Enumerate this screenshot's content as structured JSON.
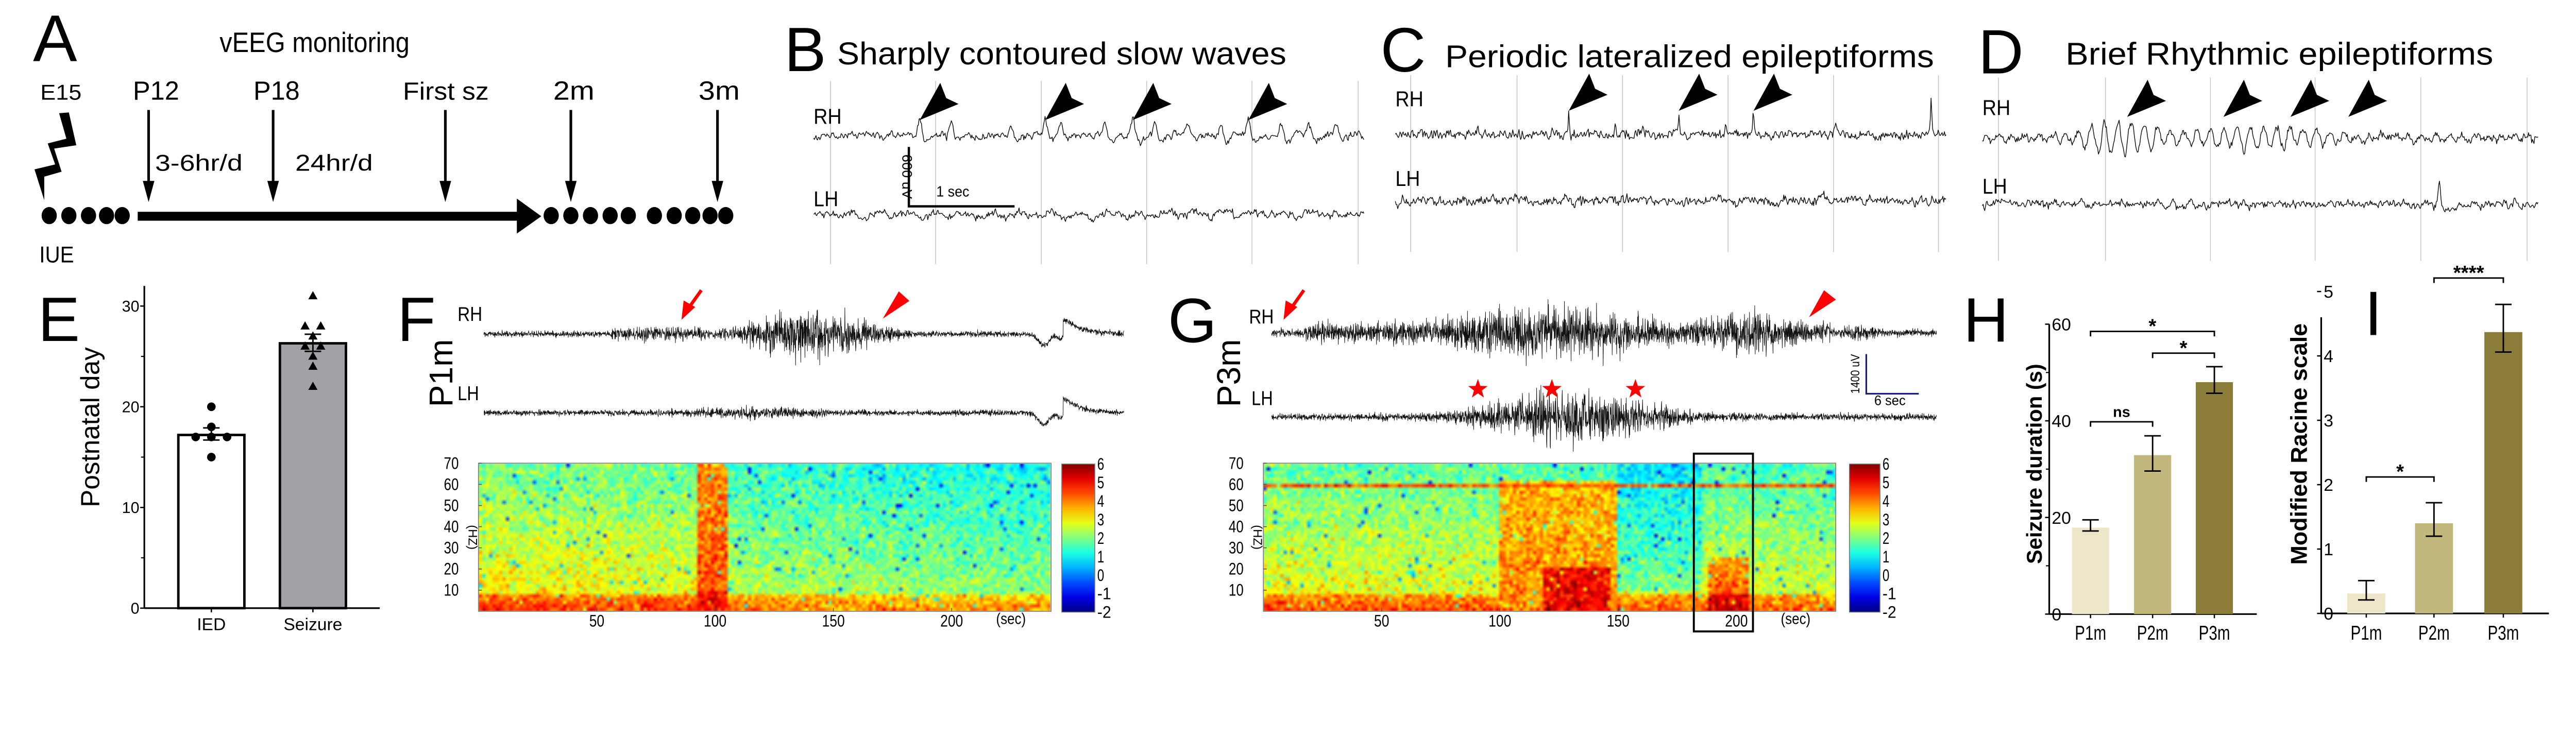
{
  "figure": {
    "A": {
      "label": "A",
      "title": "vEEG monitoring",
      "timepoints": [
        "E15",
        "P12",
        "P18",
        "First sz",
        "2m",
        "3m"
      ],
      "periods": [
        "3-6hr/d",
        "24hr/d"
      ],
      "procedure": "IUE",
      "icons": {
        "electroporation": "lightning-bolt-icon",
        "timeline": "timeline-arrow-icon"
      }
    },
    "B": {
      "label": "B",
      "title": "Sharply contoured slow waves",
      "channels": [
        "RH",
        "LH"
      ],
      "scale_bar": {
        "voltage": "600 uV",
        "time": "1 sec"
      },
      "markers": "black-arrowhead-icon"
    },
    "C": {
      "label": "C",
      "title": "Periodic lateralized epileptiforms",
      "channels": [
        "RH",
        "LH"
      ],
      "markers": "black-arrowhead-icon"
    },
    "D": {
      "label": "D",
      "title": "Brief Rhythmic epileptiforms",
      "channels": [
        "RH",
        "LH"
      ],
      "markers": "black-arrowhead-icon"
    },
    "E": {
      "label": "E"
    },
    "F": {
      "label": "F",
      "condition": "P1m",
      "channels": [
        "RH",
        "LH"
      ],
      "onset_marker": "red-arrow-icon",
      "offset_marker": "red-arrowhead-icon"
    },
    "G": {
      "label": "G",
      "condition": "P3m",
      "channels": [
        "RH",
        "LH"
      ],
      "scale_bar": {
        "voltage": "1400 uV",
        "time": "6 sec"
      },
      "onset_marker": "red-arrow-icon",
      "offset_marker": "red-arrowhead-icon",
      "lh_markers": "red-star-icon"
    },
    "H": {
      "label": "H"
    },
    "I": {
      "label": "I"
    }
  },
  "colors": {
    "trace": "#111111",
    "gridline": "#c8c8c8",
    "marker_red": "#ff0000",
    "scale_bar_G": "#1a1a8c",
    "E_bars": [
      "#ffffff",
      "#a2a1a6"
    ],
    "HI_bars": [
      "#ede6c8",
      "#c2b77d",
      "#8c7c3a"
    ]
  },
  "chart_data": [
    {
      "panel": "E",
      "type": "bar",
      "categories": [
        "IED",
        "Seizure"
      ],
      "values": [
        17.2,
        26.3
      ],
      "error": [
        [
          16.7,
          17.9
        ],
        [
          25.5,
          27.2
        ]
      ],
      "points": [
        [
          20,
          18,
          17,
          17,
          17,
          15
        ],
        [
          31,
          28,
          28,
          27,
          26,
          26,
          25,
          24,
          22
        ]
      ],
      "markers": [
        "circle",
        "triangle"
      ],
      "ylabel": "Postnatal day",
      "ylim": [
        0,
        32
      ],
      "yticks": [
        "0",
        "10",
        "20",
        "30"
      ],
      "grid": false
    },
    {
      "panel": "F",
      "type": "heatmap",
      "ylabel": "(HZ)",
      "xlabel": "(sec)",
      "xticks": [
        "50",
        "100",
        "150",
        "200"
      ],
      "yticks": [
        "10",
        "20",
        "30",
        "40",
        "50",
        "60",
        "70"
      ],
      "xlim": [
        0,
        242
      ],
      "ylim": [
        0,
        70
      ],
      "colorbar": {
        "ticks": [
          "6",
          "5",
          "4",
          "3",
          "2",
          "1",
          "0",
          "-1",
          "-2"
        ],
        "range": [
          -2,
          6
        ],
        "colormap": "jet"
      },
      "high_power_events": [
        {
          "t": [
            93,
            105
          ],
          "f": [
            0,
            70
          ]
        }
      ]
    },
    {
      "panel": "G",
      "type": "heatmap",
      "ylabel": "(HZ)",
      "xlabel": "(sec)",
      "xticks": [
        "50",
        "100",
        "150",
        "200"
      ],
      "yticks": [
        "10",
        "20",
        "30",
        "40",
        "50",
        "60",
        "70"
      ],
      "xlim": [
        0,
        242
      ],
      "ylim": [
        0,
        70
      ],
      "colorbar": {
        "ticks": [
          "6",
          "5",
          "4",
          "3",
          "2",
          "1",
          "0",
          "-1",
          "-2"
        ],
        "range": [
          -2,
          6
        ],
        "colormap": "jet"
      },
      "high_power_events": [
        {
          "t": [
            100,
            150
          ],
          "f": [
            0,
            60
          ]
        },
        {
          "t": [
            188,
            205
          ],
          "f": [
            0,
            25
          ]
        }
      ],
      "line_noise_hz": 60,
      "highlight_box_t": [
        182,
        207
      ]
    },
    {
      "panel": "H",
      "type": "bar",
      "categories": [
        "P1m",
        "P2m",
        "P3m"
      ],
      "values": [
        17.9,
        32.9,
        48.0
      ],
      "error": [
        [
          17.2,
          19.5
        ],
        [
          29.6,
          36.9
        ],
        [
          45.7,
          51.2
        ]
      ],
      "ylabel": "Seizure duration (s)",
      "ylim": [
        0,
        60
      ],
      "yticks": [
        "0",
        "20",
        "40",
        "60"
      ],
      "comparisons": [
        {
          "pair": [
            0,
            1
          ],
          "label": "ns",
          "y": 39.8
        },
        {
          "pair": [
            1,
            2
          ],
          "label": "*",
          "y": 54.0
        },
        {
          "pair": [
            0,
            2
          ],
          "label": "*",
          "y": 58.5
        }
      ],
      "grid": false
    },
    {
      "panel": "I",
      "type": "bar",
      "categories": [
        "P1m",
        "P2m",
        "P3m"
      ],
      "values": [
        0.31,
        1.4,
        4.37
      ],
      "error": [
        [
          0.21,
          0.51
        ],
        [
          1.2,
          1.72
        ],
        [
          4.06,
          4.8
        ]
      ],
      "ylabel": "Modified Racine scale",
      "ylim": [
        0,
        5
      ],
      "yticks": [
        "0",
        "1",
        "2",
        "3",
        "4",
        "5"
      ],
      "comparisons": [
        {
          "pair": [
            0,
            1
          ],
          "label": "*",
          "y": 2.12
        },
        {
          "pair": [
            1,
            2
          ],
          "label": "****",
          "y": 5.21
        }
      ],
      "grid": false
    }
  ]
}
